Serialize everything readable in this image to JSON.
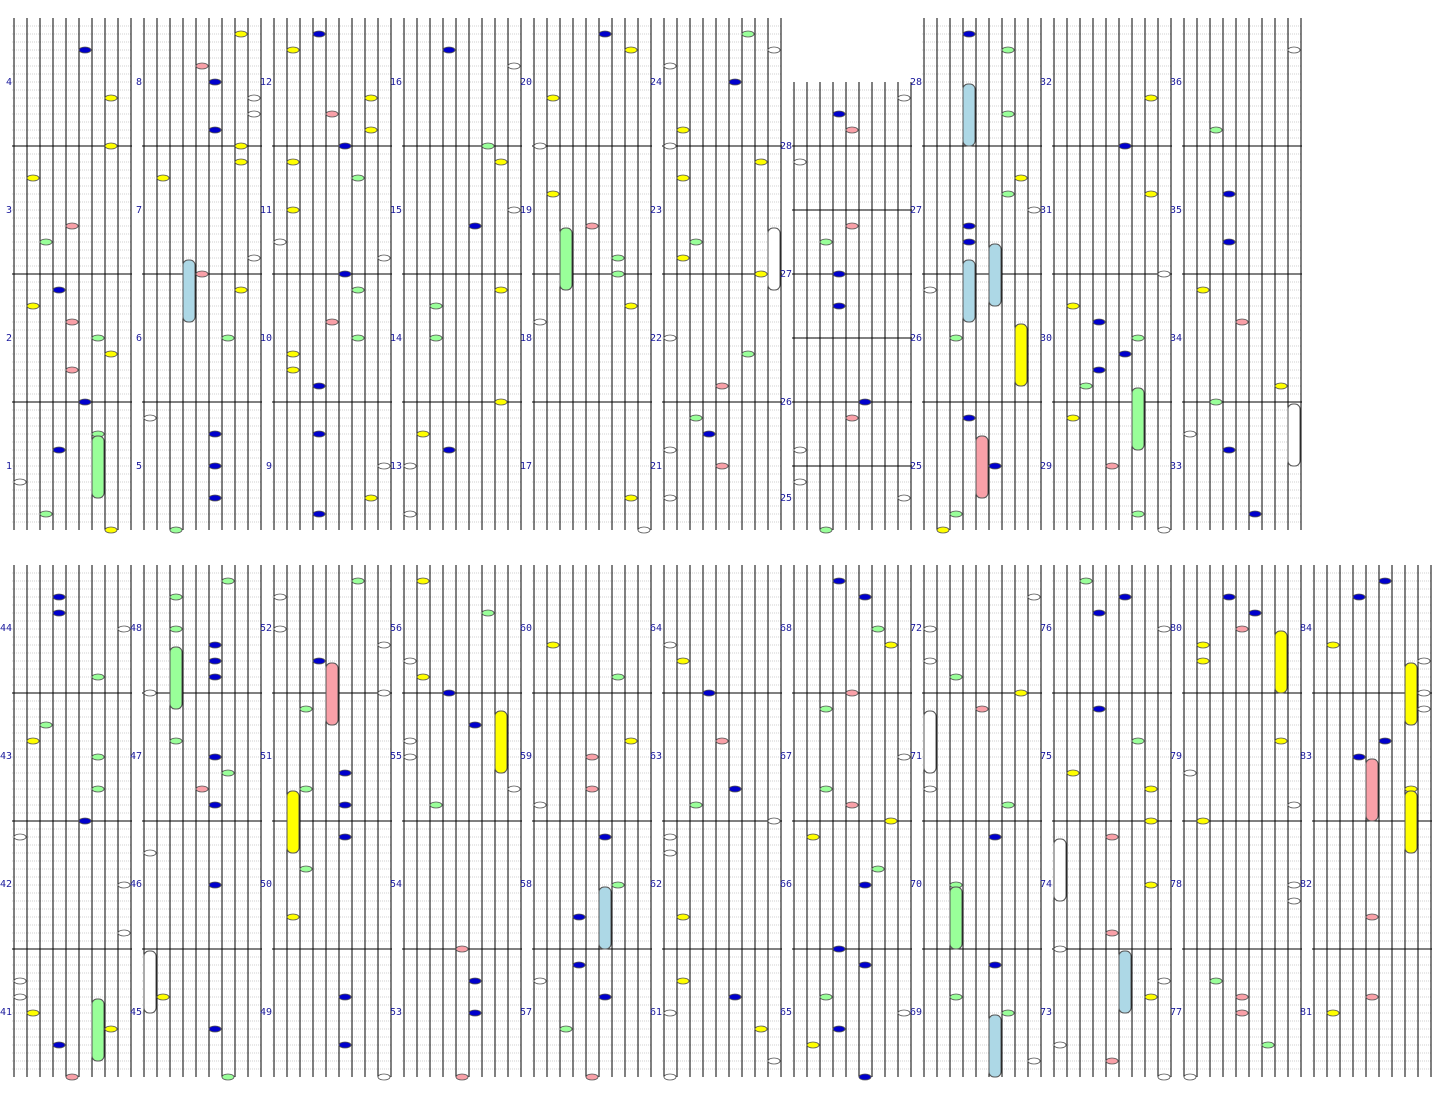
{
  "measure_labels": [
    "1",
    "2",
    "3",
    "4",
    "5",
    "6",
    "7",
    "8",
    "9",
    "10",
    "11",
    "12",
    "13",
    "14",
    "15",
    "16",
    "17",
    "18",
    "19",
    "20",
    "21",
    "22",
    "23",
    "24",
    "25",
    "26",
    "27",
    "28",
    "29",
    "30",
    "31",
    "32",
    "33",
    "34",
    "35",
    "36",
    "37",
    "38",
    "39",
    "40",
    "41",
    "42",
    "43",
    "44",
    "45",
    "46",
    "47",
    "48",
    "49",
    "50",
    "51",
    "52",
    "53",
    "54",
    "55",
    "56",
    "57",
    "58",
    "59",
    "60",
    "61",
    "62",
    "63",
    "64",
    "65",
    "66",
    "67",
    "68",
    "69",
    "70",
    "71",
    "72",
    "73",
    "74",
    "75",
    "76",
    "77",
    "78",
    "79",
    "80",
    "81",
    "82",
    "83",
    "84"
  ]
}
